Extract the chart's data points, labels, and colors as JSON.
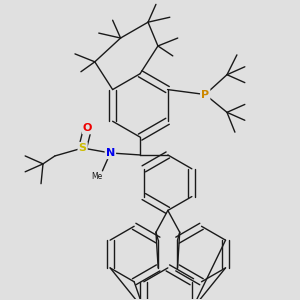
{
  "background_color": "#e0e0e0",
  "figsize": [
    3.0,
    3.0
  ],
  "dpi": 100,
  "atom_colors": {
    "P": "#cc8800",
    "S": "#ccbb00",
    "N": "#0000ee",
    "O": "#ee0000",
    "C": "#1a1a1a"
  },
  "bond_color": "#1a1a1a",
  "bond_lw": 1.0
}
